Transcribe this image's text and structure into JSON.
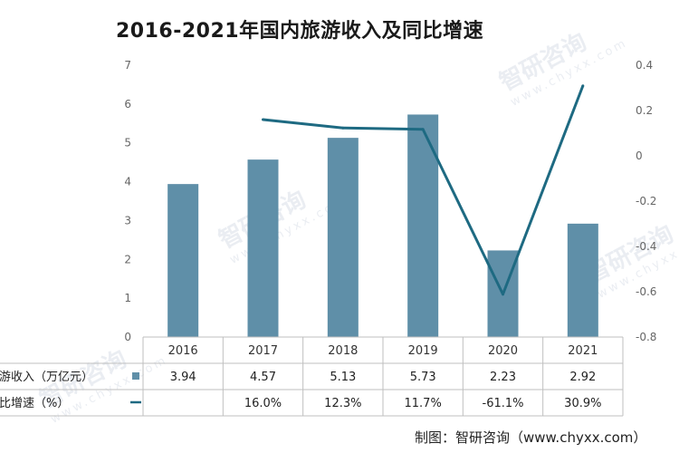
{
  "chart_data": {
    "type": "bar",
    "title": "2016-2021年国内旅游收入及同比增速",
    "categories": [
      "2016",
      "2017",
      "2018",
      "2019",
      "2020",
      "2021"
    ],
    "series": [
      {
        "name": "旅游收入（万亿元）",
        "type": "bar",
        "axis": "left",
        "values": [
          3.94,
          4.57,
          5.13,
          5.73,
          2.23,
          2.92
        ],
        "labels": [
          "3.94",
          "4.57",
          "5.13",
          "5.73",
          "2.23",
          "2.92"
        ]
      },
      {
        "name": "同比增速（%）",
        "type": "line",
        "axis": "right",
        "values": [
          null,
          0.16,
          0.123,
          0.117,
          -0.611,
          0.309
        ],
        "labels": [
          "",
          "16.0%",
          "12.3%",
          "11.7%",
          "-61.1%",
          "30.9%"
        ]
      }
    ],
    "ylim_left": [
      0,
      7
    ],
    "yticks_left": [
      "0",
      "1",
      "2",
      "3",
      "4",
      "5",
      "6",
      "7"
    ],
    "ylim_right": [
      -0.8,
      0.4
    ],
    "yticks_right": [
      "-0.8",
      "-0.6",
      "-0.4",
      "-0.2",
      "0",
      "0.2",
      "0.4"
    ],
    "bar_color": "#5f8fa8",
    "line_color": "#1e6a82",
    "legend": "table-below"
  },
  "credit": "制图：智研咨询（www.chyxx.com）",
  "watermark": {
    "name": "智研咨询",
    "url": "www.chyxx.com"
  }
}
